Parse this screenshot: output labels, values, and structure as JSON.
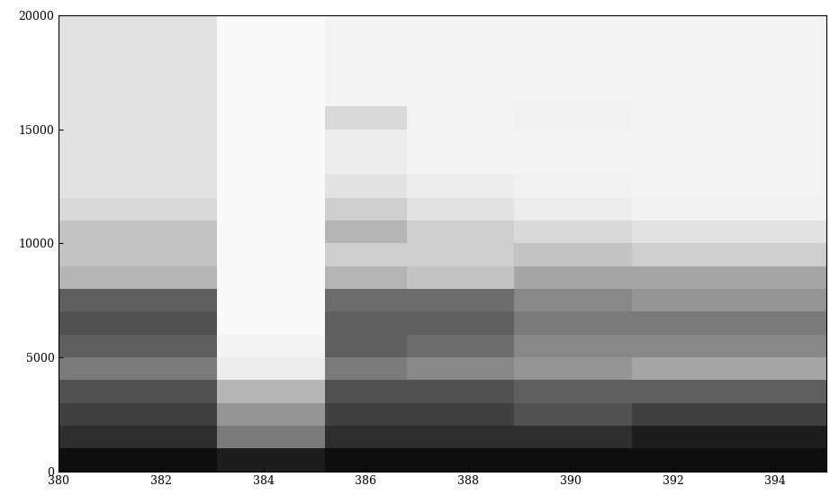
{
  "chart_data": {
    "type": "heatmap",
    "color": "Greys",
    "xlim": [
      380,
      395
    ],
    "ylim": [
      0,
      20000
    ],
    "xticks": [
      380,
      382,
      384,
      386,
      388,
      390,
      392,
      394
    ],
    "yticks": [
      0,
      5000,
      10000,
      15000,
      20000
    ],
    "x_edges": [
      380,
      383.1,
      385.2,
      386.8,
      388.9,
      391.2,
      395
    ],
    "y_edges": [
      0,
      1000,
      2000,
      3000,
      4000,
      5000,
      6000,
      7000,
      8000,
      9000,
      10000,
      11000,
      12000,
      13000,
      14000,
      15000,
      16000,
      17000,
      18000,
      19000,
      20000
    ],
    "color_range": [
      0,
      1
    ],
    "cells_by_x": [
      [
        0.95,
        0.85,
        0.8,
        0.75,
        0.6,
        0.7,
        0.75,
        0.7,
        0.4,
        0.35,
        0.35,
        0.25,
        0.2,
        0.2,
        0.2,
        0.2,
        0.2,
        0.2,
        0.2,
        0.2
      ],
      [
        0.9,
        0.6,
        0.5,
        0.4,
        0.15,
        0.1,
        0.05,
        0.05,
        0.05,
        0.05,
        0.05,
        0.05,
        0.05,
        0.05,
        0.05,
        0.05,
        0.05,
        0.05,
        0.05,
        0.05
      ],
      [
        0.95,
        0.85,
        0.8,
        0.75,
        0.6,
        0.7,
        0.7,
        0.65,
        0.4,
        0.3,
        0.4,
        0.3,
        0.2,
        0.15,
        0.15,
        0.25,
        0.1,
        0.1,
        0.1,
        0.1
      ],
      [
        0.95,
        0.85,
        0.8,
        0.75,
        0.55,
        0.65,
        0.7,
        0.65,
        0.35,
        0.3,
        0.3,
        0.2,
        0.15,
        0.1,
        0.1,
        0.1,
        0.1,
        0.1,
        0.1,
        0.1
      ],
      [
        0.95,
        0.85,
        0.75,
        0.7,
        0.5,
        0.55,
        0.6,
        0.55,
        0.45,
        0.35,
        0.25,
        0.15,
        0.12,
        0.1,
        0.1,
        0.12,
        0.1,
        0.1,
        0.1,
        0.1
      ],
      [
        0.95,
        0.9,
        0.8,
        0.7,
        0.45,
        0.55,
        0.6,
        0.5,
        0.45,
        0.3,
        0.2,
        0.12,
        0.1,
        0.1,
        0.1,
        0.1,
        0.1,
        0.1,
        0.1,
        0.1
      ]
    ]
  }
}
